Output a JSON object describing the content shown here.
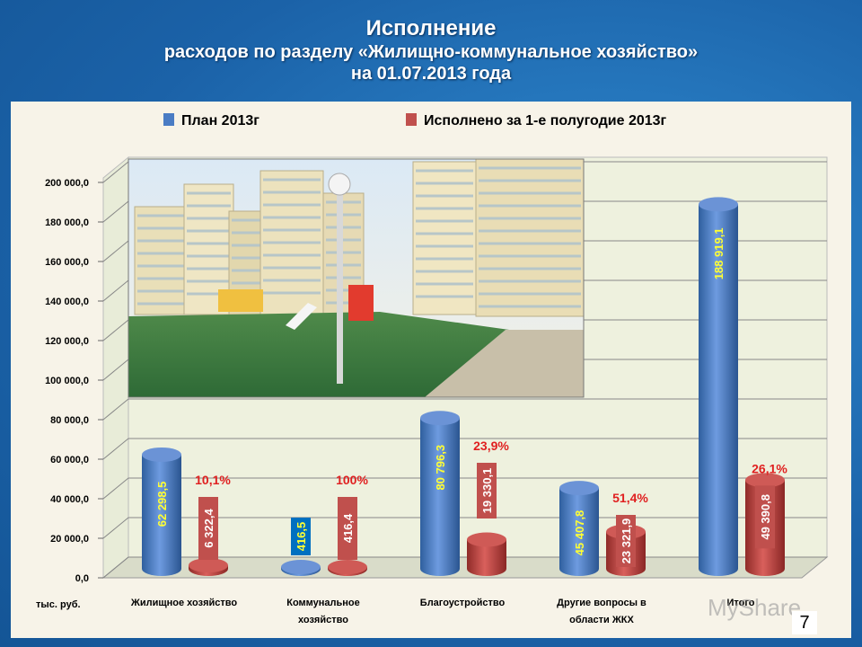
{
  "title": {
    "line1": "Исполнение",
    "line2": "расходов по разделу «Жилищно-коммунальное хозяйство»",
    "line3": "на 01.07.2013 года"
  },
  "unit_label": "тыс. руб.",
  "page_number": "7",
  "watermark": "MyShare",
  "photo": "residential-buildings-playground-photo",
  "colors": {
    "plan": "#4a7cc4",
    "exec": "#c0504d",
    "plan_label": "#ffff33",
    "pct_label": "#e02020"
  },
  "chart_data": {
    "type": "bar",
    "categories": [
      "Жилищное хозяйство",
      "Коммунальное хозяйство",
      "Благоустройство",
      "Другие вопросы в области ЖКХ",
      "Итого"
    ],
    "series": [
      {
        "name": "План 2013г",
        "values": [
          62298.5,
          416.5,
          80796.3,
          45407.8,
          188919.1
        ],
        "labels": [
          "62 298,5",
          "416,5",
          "80 796,3",
          "45 407,8",
          "188 919,1"
        ]
      },
      {
        "name": "Исполнено за 1-е полугодие 2013г",
        "values": [
          6322.4,
          416.4,
          19330.1,
          23321.9,
          49390.8
        ],
        "labels": [
          "6 322,4",
          "416,4",
          "19 330,1",
          "23 321,9",
          "49 390,8"
        ]
      }
    ],
    "percentages": [
      "10,1%",
      "100%",
      "23,9%",
      "51,4%",
      "26,1%"
    ],
    "ylim": [
      0,
      200000
    ],
    "yticks": [
      "0,0",
      "20 000,0",
      "40 000,0",
      "60 000,0",
      "80 000,0",
      "100 000,0",
      "120 000,0",
      "140 000,0",
      "160 000,0",
      "180 000,0",
      "200 000,0"
    ],
    "legend_position": "top",
    "grid": true
  }
}
